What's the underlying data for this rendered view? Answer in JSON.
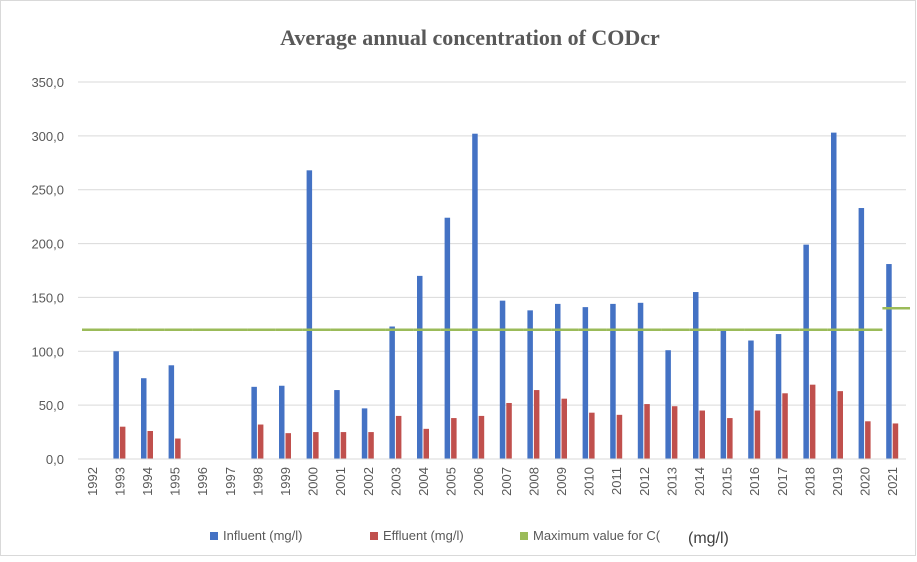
{
  "chart_data": {
    "type": "bar",
    "title": "Average annual concentration of CODcr",
    "categories": [
      "1992",
      "1993",
      "1994",
      "1995",
      "1996",
      "1997",
      "1998",
      "1999",
      "2000",
      "2001",
      "2002",
      "2003",
      "2004",
      "2005",
      "2006",
      "2007",
      "2008",
      "2009",
      "2010",
      "2011",
      "2012",
      "2013",
      "2014",
      "2015",
      "2016",
      "2017",
      "2018",
      "2019",
      "2020",
      "2021"
    ],
    "series": [
      {
        "name": "Influent (mg/l)",
        "color": "#4472c4",
        "type": "bar",
        "values": [
          null,
          100,
          75,
          87,
          null,
          null,
          67,
          68,
          268,
          64,
          47,
          123,
          170,
          224,
          302,
          147,
          138,
          144,
          141,
          144,
          145,
          101,
          155,
          120,
          110,
          116,
          199,
          303,
          233,
          181
        ]
      },
      {
        "name": "Effluent (mg/l)",
        "color": "#c0504d",
        "type": "bar",
        "values": [
          null,
          30,
          26,
          19,
          null,
          null,
          32,
          24,
          25,
          25,
          25,
          40,
          28,
          38,
          40,
          52,
          64,
          56,
          43,
          41,
          51,
          49,
          45,
          38,
          45,
          61,
          69,
          63,
          35,
          33
        ]
      },
      {
        "name": "Maximum value for C(",
        "color": "#9bbb59",
        "type": "step",
        "values": [
          120,
          120,
          120,
          120,
          120,
          120,
          120,
          120,
          120,
          120,
          120,
          120,
          120,
          120,
          120,
          120,
          120,
          120,
          120,
          120,
          120,
          120,
          120,
          120,
          120,
          120,
          120,
          120,
          120,
          140
        ]
      }
    ],
    "legend_note": "(mg/l)",
    "ylim": [
      0,
      350
    ],
    "yticks": [
      {
        "value": 0,
        "label": "0,0"
      },
      {
        "value": 50,
        "label": "50,0"
      },
      {
        "value": 100,
        "label": "100,0"
      },
      {
        "value": 150,
        "label": "150,0"
      },
      {
        "value": 200,
        "label": "200,0"
      },
      {
        "value": 250,
        "label": "250,0"
      },
      {
        "value": 300,
        "label": "300,0"
      },
      {
        "value": 350,
        "label": "350,0"
      }
    ],
    "grid": true,
    "legend": "bottom"
  }
}
